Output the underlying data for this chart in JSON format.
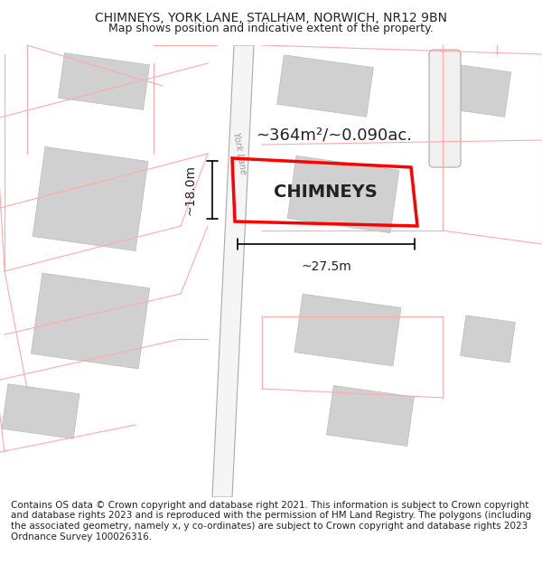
{
  "title_line1": "CHIMNEYS, YORK LANE, STALHAM, NORWICH, NR12 9BN",
  "title_line2": "Map shows position and indicative extent of the property.",
  "footer_text": "Contains OS data © Crown copyright and database right 2021. This information is subject to Crown copyright and database rights 2023 and is reproduced with the permission of HM Land Registry. The polygons (including the associated geometry, namely x, y co-ordinates) are subject to Crown copyright and database rights 2023 Ordnance Survey 100026316.",
  "area_label": "~364m²/~0.090ac.",
  "width_label": "~27.5m",
  "height_label": "~18.0m",
  "property_name": "CHIMNEYS",
  "road_label": "York Lane",
  "bg_color": "#ffffff",
  "map_bg": "#ffffff",
  "road_fill": "#f0f0f0",
  "building_fill": "#d8d8d8",
  "building_edge_light": "#cccccc",
  "plot_outline_color": "#cccccc",
  "highlight_color": "#ff0000",
  "road_line_color": "#aaaaaa",
  "plot_line_color": "#ffaaaa",
  "title_fontsize": 10,
  "footer_fontsize": 7.5
}
